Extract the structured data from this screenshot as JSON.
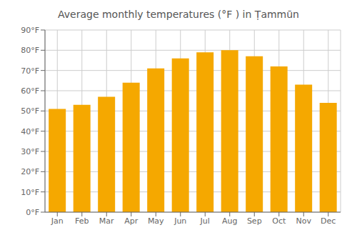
{
  "chart_data": {
    "type": "bar",
    "title": "Average monthly temperatures (°F ) in Ṭammūn",
    "categories": [
      "Jan",
      "Feb",
      "Mar",
      "Apr",
      "May",
      "Jun",
      "Jul",
      "Aug",
      "Sep",
      "Oct",
      "Nov",
      "Dec"
    ],
    "values": [
      51,
      53,
      57,
      64,
      71,
      76,
      79,
      80,
      77,
      72,
      63,
      54
    ],
    "color": "#F5A800",
    "ylim": [
      0,
      90
    ],
    "yticks": [
      {
        "value": 0,
        "label": "0°F"
      },
      {
        "value": 10,
        "label": "10°F"
      },
      {
        "value": 20,
        "label": "20°F"
      },
      {
        "value": 30,
        "label": "30°F"
      },
      {
        "value": 40,
        "label": "40°F"
      },
      {
        "value": 50,
        "label": "50°F"
      },
      {
        "value": 60,
        "label": "60°F"
      },
      {
        "value": 70,
        "label": "70°F"
      },
      {
        "value": 80,
        "label": "80°F"
      },
      {
        "value": 90,
        "label": "90°F"
      }
    ],
    "grid": true
  }
}
